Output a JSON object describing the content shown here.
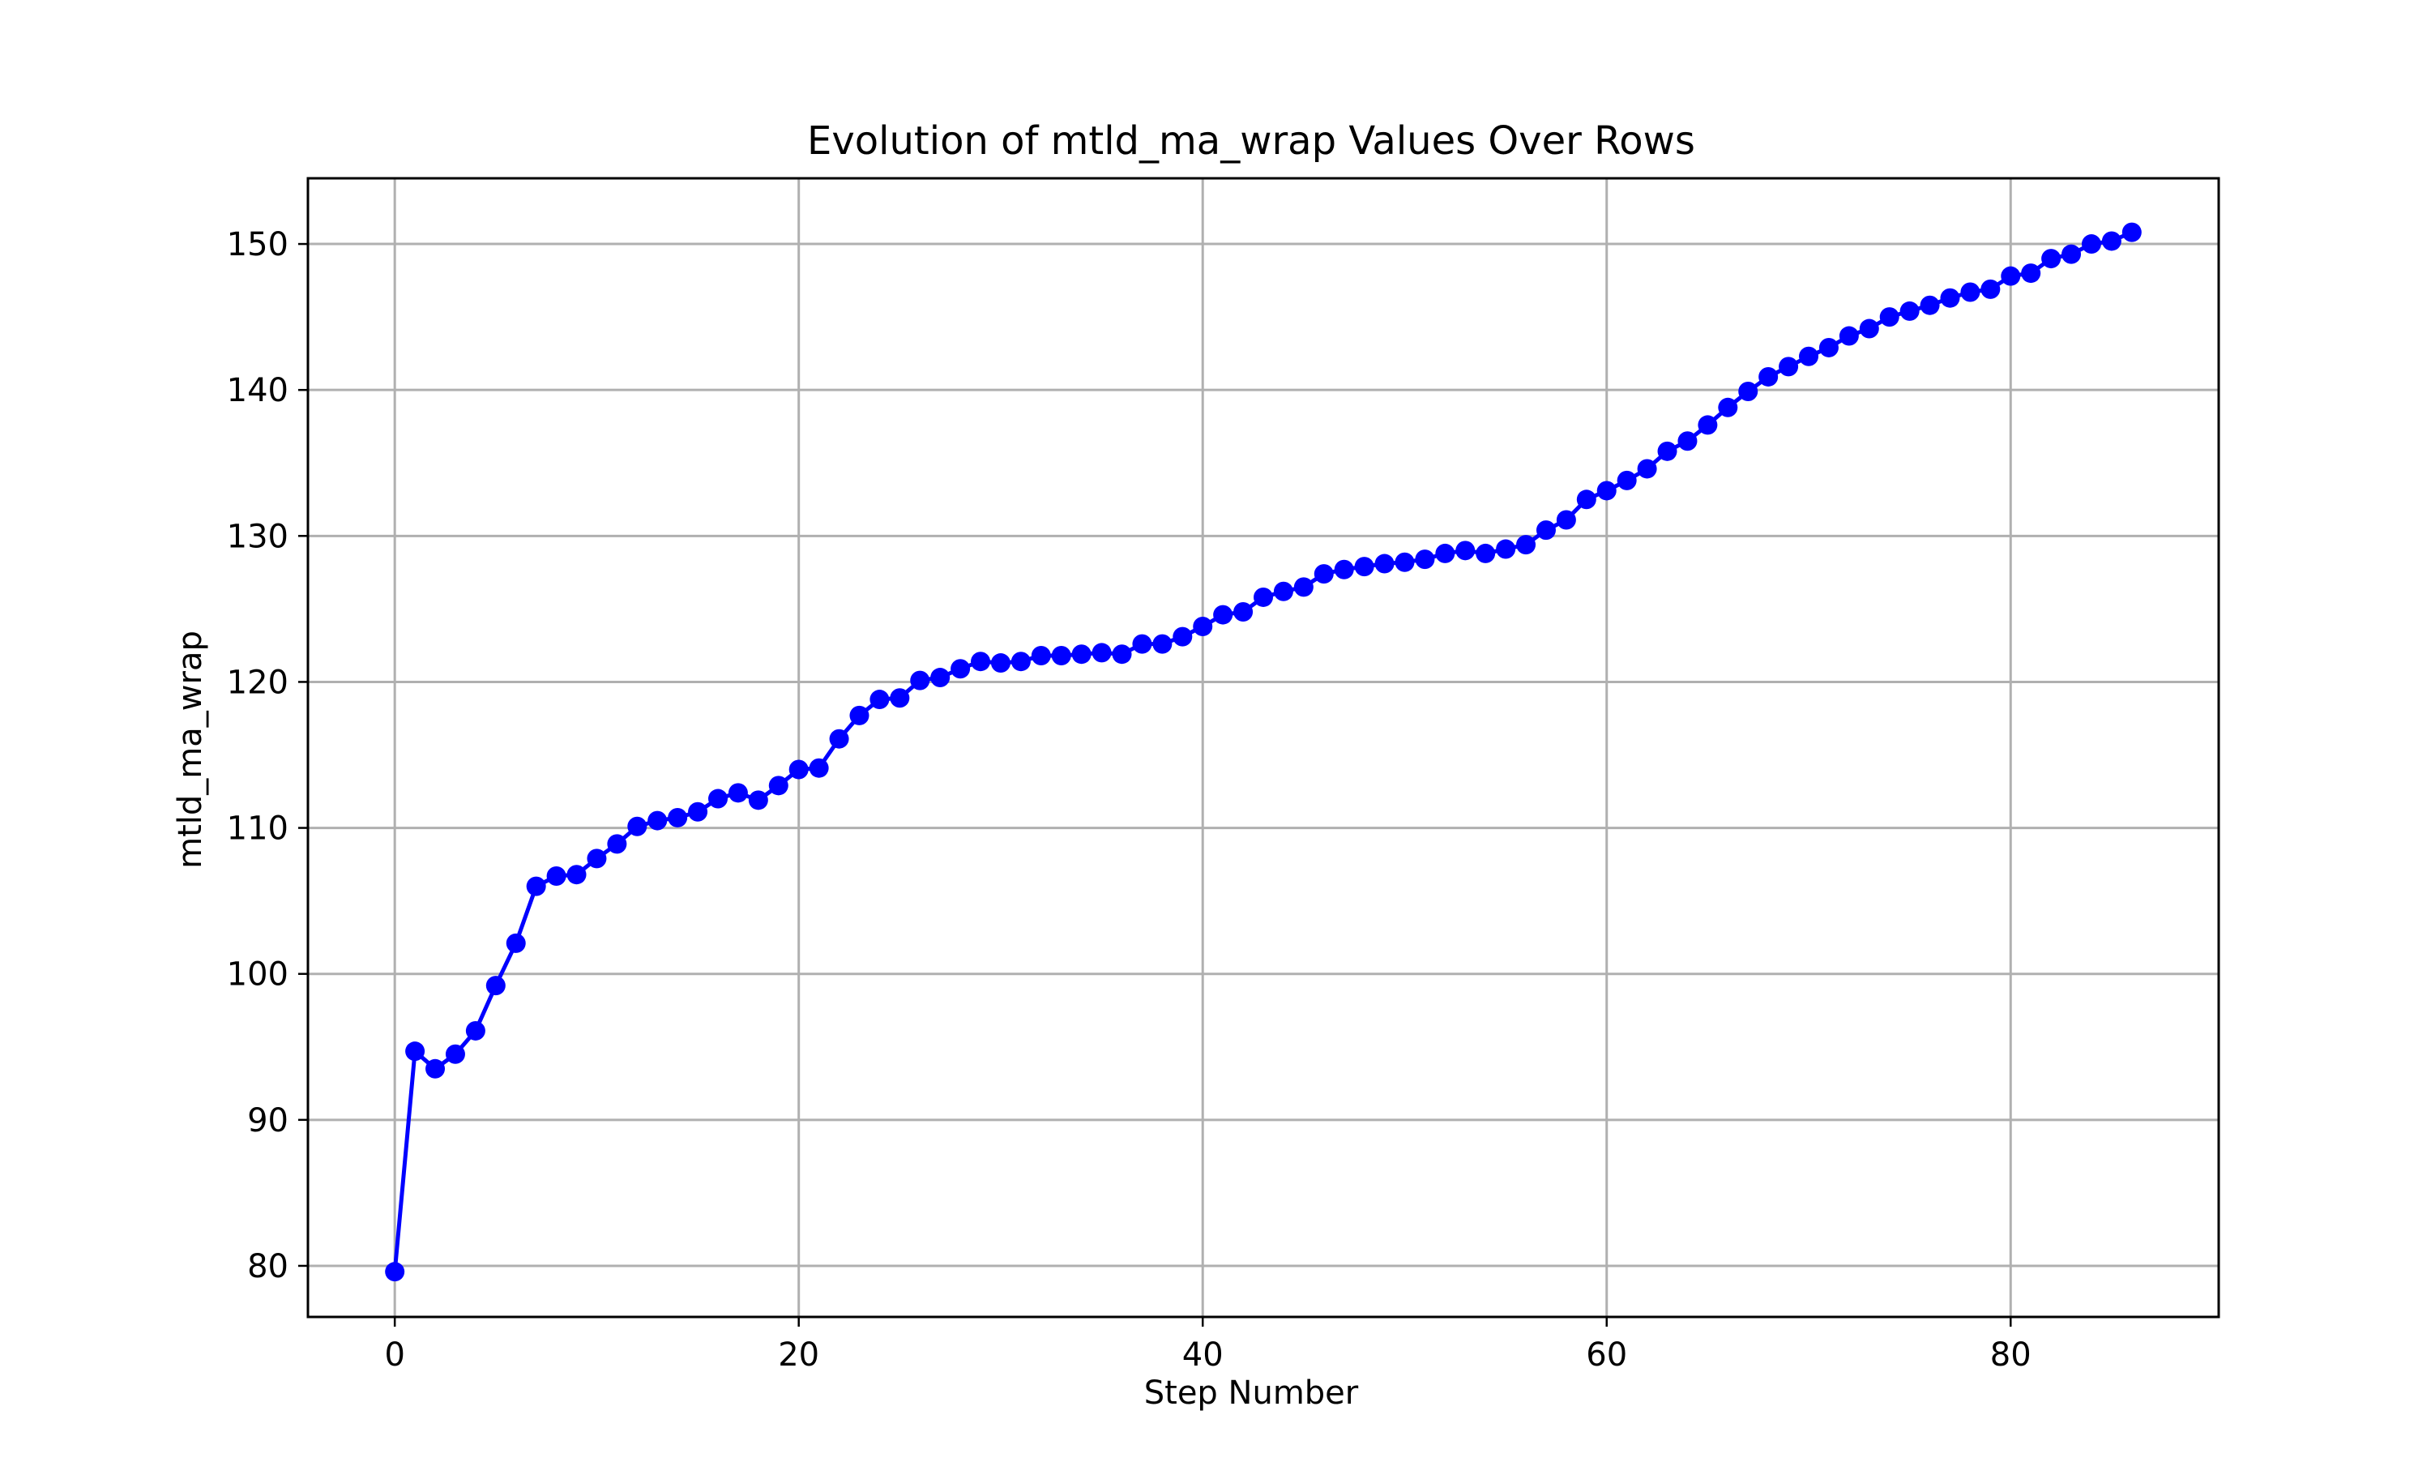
{
  "chart_data": {
    "type": "line",
    "title": "Evolution of mtld_ma_wrap Values Over Rows",
    "xlabel": "Step Number",
    "ylabel": "mtld_ma_wrap",
    "xlim": [
      -4.3,
      90.3
    ],
    "ylim": [
      76.5,
      154.5
    ],
    "xticks": [
      0,
      20,
      40,
      60,
      80
    ],
    "yticks": [
      80,
      90,
      100,
      110,
      120,
      130,
      140,
      150
    ],
    "grid": true,
    "marker": "circle",
    "series": [
      {
        "color": "#0000ff",
        "x": [
          0,
          1,
          2,
          3,
          4,
          5,
          6,
          7,
          8,
          9,
          10,
          11,
          12,
          13,
          14,
          15,
          16,
          17,
          18,
          19,
          20,
          21,
          22,
          23,
          24,
          25,
          26,
          27,
          28,
          29,
          30,
          31,
          32,
          33,
          34,
          35,
          36,
          37,
          38,
          39,
          40,
          41,
          42,
          43,
          44,
          45,
          46,
          47,
          48,
          49,
          50,
          51,
          52,
          53,
          54,
          55,
          56,
          57,
          58,
          59,
          60,
          61,
          62,
          63,
          64,
          65,
          66,
          67,
          68,
          69,
          70,
          71,
          72,
          73,
          74,
          75,
          76,
          77,
          78,
          79,
          80,
          81,
          82,
          83,
          84,
          85,
          86
        ],
        "y": [
          79.6,
          94.7,
          93.5,
          94.5,
          96.1,
          99.2,
          102.1,
          106.0,
          106.7,
          106.8,
          107.9,
          108.9,
          110.1,
          110.5,
          110.7,
          111.1,
          112.0,
          112.4,
          111.9,
          112.9,
          114.0,
          114.1,
          116.1,
          117.7,
          118.8,
          118.9,
          120.1,
          120.3,
          120.9,
          121.4,
          121.3,
          121.4,
          121.8,
          121.8,
          121.9,
          122.0,
          121.9,
          122.6,
          122.6,
          123.1,
          123.8,
          124.6,
          124.8,
          125.8,
          126.2,
          126.5,
          127.4,
          127.7,
          127.9,
          128.1,
          128.2,
          128.4,
          128.8,
          129.0,
          128.8,
          129.1,
          129.4,
          130.4,
          131.1,
          132.5,
          133.1,
          133.8,
          134.6,
          135.8,
          136.5,
          137.6,
          138.8,
          139.9,
          140.9,
          141.6,
          142.3,
          142.9,
          143.7,
          144.2,
          145.0,
          145.4,
          145.8,
          146.3,
          146.7,
          146.9,
          147.8,
          148.0,
          149.0,
          149.3,
          150.0,
          150.2,
          150.8
        ]
      }
    ]
  }
}
